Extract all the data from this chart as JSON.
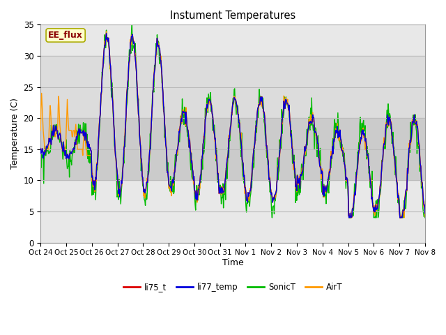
{
  "title": "Instument Temperatures",
  "xlabel": "Time",
  "ylabel": "Temperature (C)",
  "ylim": [
    0,
    35
  ],
  "annotation_text": "EE_flux",
  "annotation_color": "#8B0000",
  "annotation_bg": "#FFFFCC",
  "annotation_border": "#AAAA00",
  "legend_labels": [
    "li75_t",
    "li77_temp",
    "SonicT",
    "AirT"
  ],
  "legend_colors": [
    "#DD0000",
    "#0000DD",
    "#00BB00",
    "#FF9900"
  ],
  "xtick_labels": [
    "Oct 24",
    "Oct 25",
    "Oct 26",
    "Oct 27",
    "Oct 28",
    "Oct 29",
    "Oct 30",
    "Oct 31",
    "Nov 1",
    "Nov 2",
    "Nov 3",
    "Nov 4",
    "Nov 5",
    "Nov 6",
    "Nov 7",
    "Nov 8"
  ],
  "grid_color": "#CCCCCC",
  "plot_bg": "#E8E8E8",
  "band1_color": "#DCDCDC",
  "band2_color": "#CBCBCB"
}
